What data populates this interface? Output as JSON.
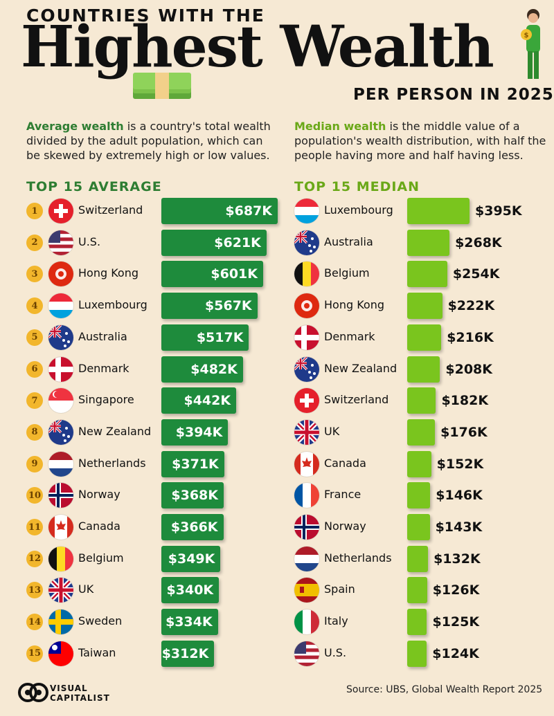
{
  "header": {
    "top_line": "COUNTRIES WITH THE",
    "big_title": "Highest Wealth",
    "sub_title": "PER PERSON IN 2025"
  },
  "descriptions": {
    "average": {
      "term": "Average wealth",
      "text": " is a country's total wealth divided by the adult population, which can be skewed by extremely high or low values."
    },
    "median": {
      "term": "Median wealth",
      "text": " is the middle value of a population's wealth distribution, with half the people having more and half having less."
    }
  },
  "colors": {
    "average_bar": "#1e8b3c",
    "median_bar": "#7ac51e",
    "rank_badge": "#f2b62c",
    "background": "#f6e9d4"
  },
  "chart_data": [
    {
      "type": "bar",
      "title": "TOP 15 AVERAGE",
      "orientation": "horizontal",
      "categories": [
        "Switzerland",
        "U.S.",
        "Hong Kong",
        "Luxembourg",
        "Australia",
        "Denmark",
        "Singapore",
        "New Zealand",
        "Netherlands",
        "Norway",
        "Canada",
        "Belgium",
        "UK",
        "Sweden",
        "Taiwan"
      ],
      "ranks": [
        "1",
        "2",
        "3",
        "4",
        "5",
        "6",
        "7",
        "8",
        "9",
        "10",
        "11",
        "12",
        "13",
        "14",
        "15"
      ],
      "values": [
        687,
        621,
        601,
        567,
        517,
        482,
        442,
        394,
        371,
        368,
        366,
        349,
        340,
        334,
        312
      ],
      "labels": [
        "$687K",
        "$621K",
        "$601K",
        "$567K",
        "$517K",
        "$482K",
        "$442K",
        "$394K",
        "$371K",
        "$368K",
        "$366K",
        "$349K",
        "$340K",
        "$334K",
        "$312K"
      ],
      "unit": "thousand USD"
    },
    {
      "type": "bar",
      "title": "TOP 15 MEDIAN",
      "orientation": "horizontal",
      "categories": [
        "Luxembourg",
        "Australia",
        "Belgium",
        "Hong Kong",
        "Denmark",
        "New Zealand",
        "Switzerland",
        "UK",
        "Canada",
        "France",
        "Norway",
        "Netherlands",
        "Spain",
        "Italy",
        "U.S."
      ],
      "values": [
        395,
        268,
        254,
        222,
        216,
        208,
        182,
        176,
        152,
        146,
        143,
        132,
        126,
        125,
        124
      ],
      "labels": [
        "$395K",
        "$268K",
        "$254K",
        "$222K",
        "$216K",
        "$208K",
        "$182K",
        "$176K",
        "$152K",
        "$146K",
        "$143K",
        "$132K",
        "$126K",
        "$125K",
        "$124K"
      ],
      "unit": "thousand USD"
    }
  ],
  "footer": {
    "brand_line1": "VISUAL",
    "brand_line2": "CAPITALIST",
    "source": "Source: UBS, Global Wealth Report 2025"
  }
}
